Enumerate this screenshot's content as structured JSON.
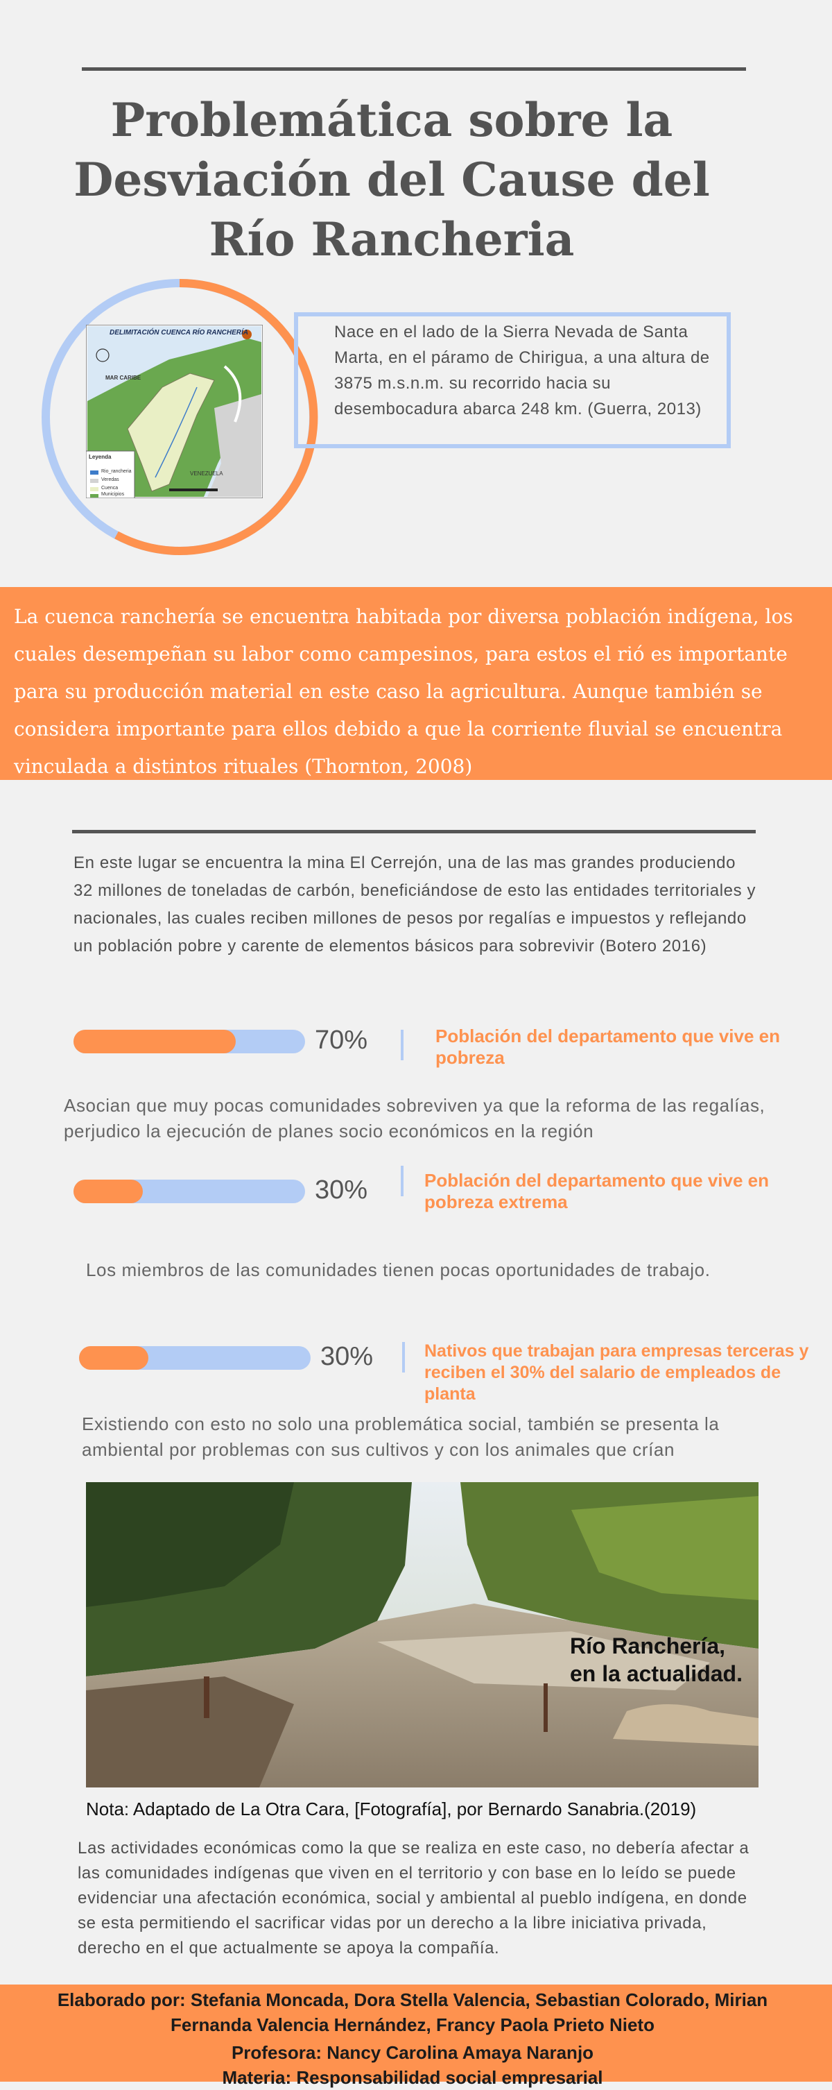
{
  "header": {
    "title_lines": [
      "Problemática sobre la",
      "Desviación del Cause del",
      "Río Rancheria"
    ]
  },
  "map": {
    "title": "DELIMITACIÓN CUENCA RÍO RANCHERÍA",
    "sea_label": "MAR CARIBE",
    "country_label": "VENEZUELA",
    "legend_title": "Leyenda",
    "legend_items": [
      "Rio_rancheria",
      "Veredas",
      "Cuenca",
      "Municipios"
    ],
    "colors": {
      "land": "#6aa84f",
      "basin": "#e9efc5",
      "sea": "#d9e8f5",
      "neighbor": "#d3d3d3"
    }
  },
  "intro": {
    "text": "Nace en el lado de la Sierra Nevada de Santa Marta, en el páramo de Chirigua, a una altura de 3875 m.s.n.m. su recorrido hacia su desembocadura abarca 248 km. (Guerra, 2013)"
  },
  "band": {
    "text": "La cuenca ranchería se encuentra habitada por diversa población indígena, los cuales desempeñan su labor como campesinos, para estos el rió es importante para su producción material en este caso la agricultura. Aunque también se considera importante para ellos debido a que la corriente fluvial se encuentra vinculada a distintos rituales (Thornton, 2008)"
  },
  "mine_paragraph": "En este lugar se encuentra la mina El Cerrejón, una de las mas grandes produciendo 32 millones de toneladas de carbón, beneficiándose de esto las entidades territoriales y nacionales, las cuales reciben millones de pesos por regalías e impuestos y reflejando un población pobre y carente de elementos básicos para sobrevivir (Botero 2016)",
  "stats": [
    {
      "value": 0.7,
      "percent_label": "70%",
      "label": "Población del departamento que vive en pobreza"
    },
    {
      "value": 0.3,
      "percent_label": "30%",
      "label": "Población del departamento que vive en pobreza extrema"
    },
    {
      "value": 0.3,
      "percent_label": "30%",
      "label": "Nativos que trabajan para empresas terceras y reciben el 30% del salario de empleados de planta"
    }
  ],
  "notes": {
    "royalties": "Asocian que muy pocas comunidades sobreviven ya que la reforma de las regalías, perjudico la ejecución de planes socio económicos en la región",
    "opportunities": "Los miembros de las comunidades tienen pocas oportunidades de trabajo.",
    "environment": "Existiendo con esto no solo una problemática social, también se presenta la ambiental por problemas con sus cultivos y con los animales que crían"
  },
  "photo": {
    "caption_lines": [
      "Río Ranchería,",
      "en la actualidad."
    ],
    "note": "Nota: Adaptado de La Otra Cara, [Fotografía], por Bernardo Sanabria.(2019)"
  },
  "closing": "Las actividades económicas como la que se realiza en este caso, no debería afectar a las comunidades indígenas que viven en el territorio y con base en lo leído se puede evidenciar una afectación económica, social y ambiental al pueblo indígena, en donde se esta permitiendo el sacrificar vidas por un derecho a la libre iniciativa privada, derecho en el que actualmente se apoya la compañía.",
  "footer": {
    "authors_line1": "Elaborado por: Stefania Moncada, Dora Stella Valencia, Sebastian Colorado, Mirian",
    "authors_line2": "Fernanda Valencia Hernández, Francy Paola Prieto Nieto",
    "teacher": "Profesora: Nancy Carolina Amaya Naranjo",
    "subject": "Materia: Responsabilidad social empresarial"
  },
  "colors": {
    "accent": "#fe924f",
    "blue": "#b3ccf5",
    "text": "#555555"
  }
}
